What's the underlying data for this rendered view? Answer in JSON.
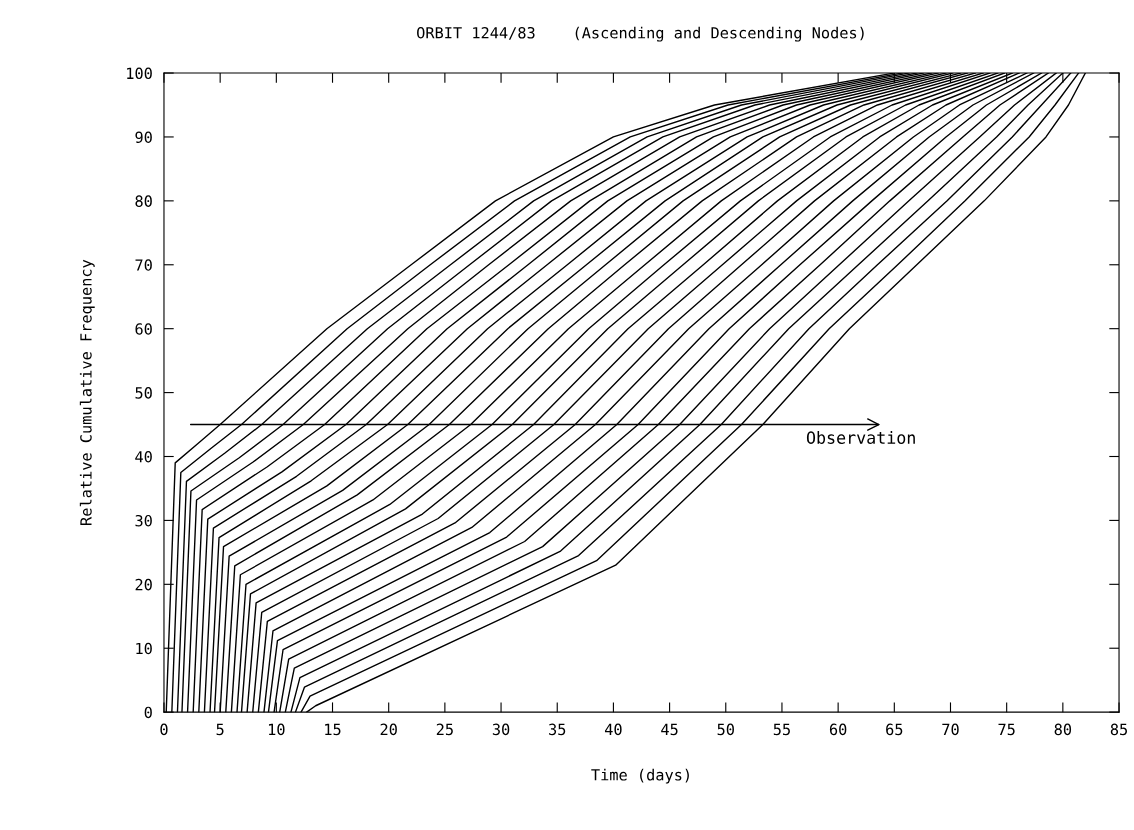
{
  "chart_data": {
    "type": "line",
    "title": "ORBIT 1244/83    (Ascending and Descending Nodes)",
    "xlabel": "Time (days)",
    "ylabel": "Relative Cumulative Frequency",
    "xlim": [
      0,
      85
    ],
    "ylim": [
      0,
      100
    ],
    "xticks": [
      0,
      5,
      10,
      15,
      20,
      25,
      30,
      35,
      40,
      45,
      50,
      55,
      60,
      65,
      70,
      75,
      80,
      85
    ],
    "yticks": [
      0,
      10,
      20,
      30,
      40,
      50,
      60,
      70,
      80,
      90,
      100
    ],
    "grid": false,
    "legend": false,
    "marker": "none",
    "line_style": "solid",
    "annotations": [
      "Observation"
    ],
    "series": [
      {
        "color": "#000000",
        "x": [
          0.2,
          1.0,
          3.0,
          5.0,
          14.5,
          22.0,
          29.5,
          40.0,
          49.0,
          65.0
        ],
        "values": [
          0,
          39.0,
          42.0,
          45,
          60,
          70,
          80,
          90,
          95,
          100
        ]
      },
      {
        "color": "#000000",
        "x": [
          0.7,
          1.5,
          4.2,
          6.9,
          16.3,
          23.7,
          31.2,
          41.5,
          50.2,
          65.7
        ],
        "values": [
          0,
          37.5,
          41.3,
          45,
          60,
          70,
          80,
          90,
          95,
          100
        ]
      },
      {
        "color": "#000000",
        "x": [
          1.2,
          2.0,
          5.4,
          8.7,
          18.1,
          25.5,
          32.9,
          43.0,
          51.4,
          66.3
        ],
        "values": [
          0,
          36.1,
          40.5,
          45,
          60,
          70,
          80,
          90,
          95,
          100
        ]
      },
      {
        "color": "#000000",
        "x": [
          1.6,
          2.4,
          6.7,
          10.6,
          19.9,
          27.2,
          34.5,
          44.4,
          52.6,
          67.0
        ],
        "values": [
          0,
          34.6,
          39.8,
          45,
          60,
          70,
          80,
          90,
          95,
          100
        ]
      },
      {
        "color": "#000000",
        "x": [
          2.1,
          2.9,
          7.9,
          12.4,
          21.7,
          28.9,
          36.2,
          45.9,
          53.9,
          67.6
        ],
        "values": [
          0,
          33.2,
          39.1,
          45,
          60,
          70,
          80,
          90,
          95,
          100
        ]
      },
      {
        "color": "#000000",
        "x": [
          2.6,
          3.4,
          9.2,
          14.3,
          23.4,
          30.7,
          37.9,
          47.4,
          55.1,
          68.3
        ],
        "values": [
          0,
          31.7,
          38.4,
          45,
          60,
          70,
          80,
          90,
          95,
          100
        ]
      },
      {
        "color": "#000000",
        "x": [
          3.1,
          3.9,
          10.5,
          16.2,
          25.2,
          32.4,
          39.5,
          48.9,
          56.3,
          68.9
        ],
        "values": [
          0,
          30.2,
          37.6,
          45,
          60,
          70,
          80,
          90,
          95,
          100
        ]
      },
      {
        "color": "#000000",
        "x": [
          3.6,
          4.4,
          11.8,
          18.0,
          27.0,
          34.1,
          41.2,
          50.4,
          57.5,
          69.6
        ],
        "values": [
          0,
          28.8,
          36.9,
          45,
          60,
          70,
          80,
          90,
          95,
          100
        ]
      },
      {
        "color": "#000000",
        "x": [
          4.1,
          4.9,
          13.1,
          19.9,
          28.8,
          35.9,
          42.9,
          51.9,
          58.7,
          70.2
        ],
        "values": [
          0,
          27.3,
          36.2,
          45,
          60,
          70,
          80,
          90,
          95,
          100
        ]
      },
      {
        "color": "#000000",
        "x": [
          4.5,
          5.3,
          14.5,
          21.7,
          30.6,
          37.6,
          44.6,
          53.3,
          59.9,
          70.9
        ],
        "values": [
          0,
          25.9,
          35.4,
          45,
          60,
          70,
          80,
          90,
          95,
          100
        ]
      },
      {
        "color": "#000000",
        "x": [
          5.0,
          5.8,
          15.9,
          23.6,
          32.4,
          39.3,
          46.2,
          54.8,
          61.1,
          71.5
        ],
        "values": [
          0,
          24.4,
          34.7,
          45,
          60,
          70,
          80,
          90,
          95,
          100
        ]
      },
      {
        "color": "#000000",
        "x": [
          5.5,
          6.3,
          17.2,
          25.4,
          34.2,
          41.0,
          47.9,
          56.3,
          62.3,
          72.2
        ],
        "values": [
          0,
          22.9,
          34.0,
          45,
          60,
          70,
          80,
          90,
          95,
          100
        ]
      },
      {
        "color": "#000000",
        "x": [
          6.0,
          6.8,
          18.6,
          27.3,
          36.0,
          42.8,
          49.6,
          57.8,
          63.5,
          72.9
        ],
        "values": [
          0,
          21.5,
          33.2,
          45,
          60,
          70,
          80,
          90,
          95,
          100
        ]
      },
      {
        "color": "#000000",
        "x": [
          6.5,
          7.3,
          20.1,
          29.2,
          37.8,
          44.5,
          51.3,
          59.3,
          64.8,
          73.5
        ],
        "values": [
          0,
          20.0,
          32.5,
          45,
          60,
          70,
          80,
          90,
          95,
          100
        ]
      },
      {
        "color": "#000000",
        "x": [
          6.9,
          7.7,
          21.5,
          31.0,
          39.5,
          46.2,
          52.9,
          60.7,
          66.0,
          74.2
        ],
        "values": [
          0,
          18.5,
          31.8,
          45,
          60,
          70,
          80,
          90,
          95,
          100
        ]
      },
      {
        "color": "#000000",
        "x": [
          7.4,
          8.2,
          23.0,
          32.9,
          41.3,
          48.0,
          54.6,
          62.2,
          67.2,
          74.8
        ],
        "values": [
          0,
          17.1,
          31.0,
          45,
          60,
          70,
          80,
          90,
          95,
          100
        ]
      },
      {
        "color": "#000000",
        "x": [
          7.9,
          8.7,
          24.4,
          34.7,
          43.1,
          49.7,
          56.3,
          63.7,
          68.4,
          75.5
        ],
        "values": [
          0,
          15.6,
          30.3,
          45,
          60,
          70,
          80,
          90,
          95,
          100
        ]
      },
      {
        "color": "#000000",
        "x": [
          8.4,
          9.2,
          25.9,
          36.6,
          44.9,
          51.4,
          57.9,
          65.2,
          69.6,
          76.1
        ],
        "values": [
          0,
          14.2,
          29.6,
          45,
          60,
          70,
          80,
          90,
          95,
          100
        ]
      },
      {
        "color": "#000000",
        "x": [
          8.9,
          9.7,
          27.4,
          38.4,
          46.7,
          53.2,
          59.6,
          66.7,
          70.8,
          76.8
        ],
        "values": [
          0,
          12.7,
          28.9,
          45,
          60,
          70,
          80,
          90,
          95,
          100
        ]
      },
      {
        "color": "#000000",
        "x": [
          9.3,
          10.1,
          29.0,
          40.3,
          48.5,
          54.9,
          61.3,
          68.1,
          72.0,
          77.4
        ],
        "values": [
          0,
          11.2,
          28.1,
          45,
          60,
          70,
          80,
          90,
          95,
          100
        ]
      },
      {
        "color": "#000000",
        "x": [
          9.8,
          10.6,
          30.5,
          42.2,
          50.3,
          56.6,
          63.0,
          69.6,
          73.2,
          78.1
        ],
        "values": [
          0,
          9.8,
          27.4,
          45,
          60,
          70,
          80,
          90,
          95,
          100
        ]
      },
      {
        "color": "#000000",
        "x": [
          10.3,
          11.1,
          32.1,
          44.0,
          52.1,
          58.4,
          64.6,
          71.1,
          74.4,
          78.7
        ],
        "values": [
          0,
          8.3,
          26.7,
          45,
          60,
          70,
          80,
          90,
          95,
          100
        ]
      },
      {
        "color": "#000000",
        "x": [
          10.8,
          11.6,
          33.7,
          45.9,
          53.9,
          60.1,
          66.3,
          72.6,
          75.7,
          79.4
        ],
        "values": [
          0,
          6.9,
          25.9,
          45,
          60,
          70,
          80,
          90,
          95,
          100
        ]
      },
      {
        "color": "#000000",
        "x": [
          11.3,
          12.1,
          35.3,
          47.7,
          55.6,
          61.8,
          68.0,
          74.1,
          76.9,
          80.0
        ],
        "values": [
          0,
          5.4,
          25.2,
          45,
          60,
          70,
          80,
          90,
          95,
          100
        ]
      },
      {
        "color": "#000000",
        "x": [
          11.7,
          12.5,
          36.9,
          49.6,
          57.4,
          63.5,
          69.7,
          75.5,
          78.1,
          80.7
        ],
        "values": [
          0,
          3.9,
          24.5,
          45,
          60,
          70,
          80,
          90,
          95,
          100
        ]
      },
      {
        "color": "#000000",
        "x": [
          12.2,
          13.0,
          38.5,
          51.4,
          59.2,
          65.3,
          71.3,
          77.0,
          79.3,
          81.4
        ],
        "values": [
          0,
          2.5,
          23.7,
          45,
          60,
          70,
          80,
          90,
          95,
          100
        ]
      },
      {
        "color": "#000000",
        "x": [
          12.7,
          13.5,
          40.2,
          53.3,
          61.0,
          67.0,
          73.0,
          78.5,
          80.5,
          82.0
        ],
        "values": [
          0,
          1.0,
          23.0,
          45,
          60,
          70,
          80,
          90,
          95,
          100
        ]
      }
    ]
  }
}
